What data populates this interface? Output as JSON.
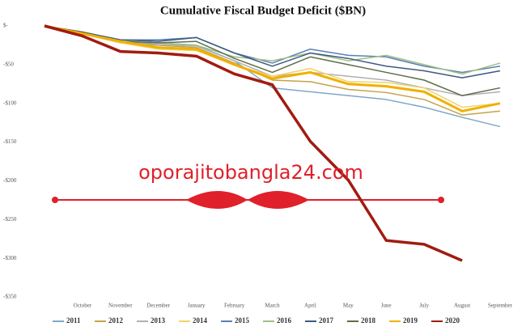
{
  "chart_data": {
    "type": "line",
    "title": "Cumulative Fiscal Budget Deficit ($BN)",
    "watermark": "oporajitobangla24.com",
    "categories": [
      null,
      "October",
      "November",
      "December",
      "January",
      "February",
      "March",
      "April",
      "May",
      "June",
      "July",
      "August",
      "September"
    ],
    "ylim": [
      0,
      -350
    ],
    "yticks": [
      {
        "value": 0,
        "label": "$-"
      },
      {
        "value": -50,
        "label": "-$50"
      },
      {
        "value": -100,
        "label": "-$100"
      },
      {
        "value": -150,
        "label": "-$150"
      },
      {
        "value": -200,
        "label": "-$200"
      },
      {
        "value": -250,
        "label": "-$250"
      },
      {
        "value": -300,
        "label": "-$300"
      },
      {
        "value": -350,
        "label": "-$350"
      }
    ],
    "grid": false,
    "legend": "bottom",
    "series": [
      {
        "name": "2011",
        "color": "#7fa7c9",
        "values": [
          0,
          -10,
          -20,
          -22,
          -25,
          -45,
          -80,
          -85,
          -90,
          -95,
          -105,
          -118,
          -130
        ]
      },
      {
        "name": "2012",
        "color": "#c6a34a",
        "values": [
          0,
          -10,
          -22,
          -25,
          -28,
          -48,
          -70,
          -72,
          -82,
          -86,
          -95,
          -115,
          -110
        ]
      },
      {
        "name": "2013",
        "color": "#b0b0b0",
        "values": [
          0,
          -10,
          -20,
          -24,
          -26,
          -45,
          -65,
          -60,
          -65,
          -70,
          -80,
          -90,
          -85
        ]
      },
      {
        "name": "2014",
        "color": "#f2d36b",
        "values": [
          0,
          -10,
          -22,
          -30,
          -32,
          -50,
          -65,
          -55,
          -72,
          -73,
          -80,
          -105,
          -100
        ]
      },
      {
        "name": "2015",
        "color": "#5a7fb5",
        "values": [
          0,
          -8,
          -18,
          -18,
          -15,
          -35,
          -48,
          -30,
          -38,
          -40,
          -52,
          -60,
          -52
        ]
      },
      {
        "name": "2016",
        "color": "#9fbf7f",
        "values": [
          0,
          -8,
          -20,
          -22,
          -25,
          -40,
          -45,
          -35,
          -45,
          -38,
          -50,
          -62,
          -48
        ]
      },
      {
        "name": "2017",
        "color": "#3d5a80",
        "values": [
          0,
          -8,
          -18,
          -20,
          -15,
          -35,
          -52,
          -35,
          -42,
          -52,
          -58,
          -67,
          -58
        ]
      },
      {
        "name": "2018",
        "color": "#5e6e4a",
        "values": [
          0,
          -8,
          -20,
          -22,
          -20,
          -42,
          -60,
          -40,
          -50,
          -60,
          -70,
          -90,
          -80
        ]
      },
      {
        "name": "2019",
        "color": "#f0b000",
        "values": [
          0,
          -10,
          -20,
          -28,
          -30,
          -50,
          -68,
          -60,
          -75,
          -78,
          -85,
          -110,
          -100
        ]
      },
      {
        "name": "2020",
        "color": "#a01c10",
        "values": [
          0,
          -13,
          -33,
          -35,
          -39,
          -62,
          -76,
          -149,
          -199,
          -277,
          -282,
          -303,
          null
        ]
      }
    ]
  }
}
